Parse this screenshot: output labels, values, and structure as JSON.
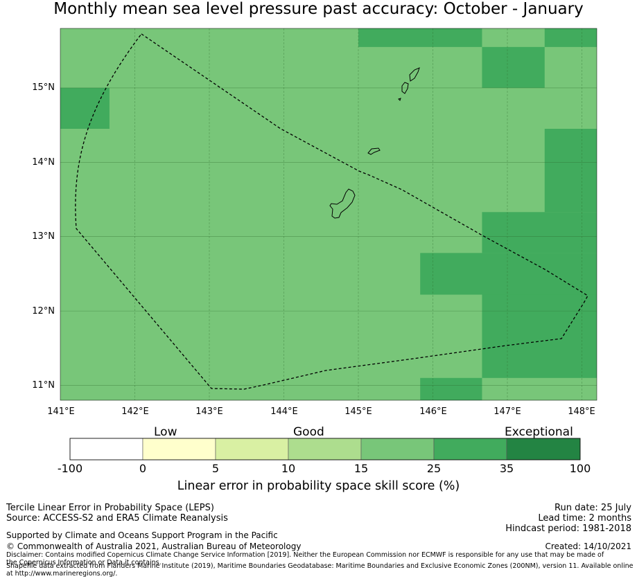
{
  "title": "Monthly mean sea level pressure past accuracy: October - January",
  "map": {
    "lon_range": [
      141.0,
      148.2
    ],
    "lat_range": [
      10.8,
      15.8
    ],
    "lat_labels": [
      "15°N",
      "14°N",
      "13°N",
      "12°N",
      "11°N"
    ],
    "lon_labels": [
      "141°E",
      "142°E",
      "143°E",
      "144°E",
      "145°E",
      "146°E",
      "147°E",
      "148°E"
    ],
    "background_category": "25",
    "colors": {
      "below_0": "#ffffff",
      "0_5": "#ffffcc",
      "5_10": "#d9f0a3",
      "10_15": "#addd8e",
      "15_25": "#78c679",
      "25_35": "#41ab5d",
      "35_100": "#238443"
    },
    "highlight_cells": [
      {
        "lon": [
          145.0,
          146.66
        ],
        "lat": [
          15.55,
          15.8
        ],
        "category": "25_35"
      },
      {
        "lon": [
          147.5,
          148.2
        ],
        "lat": [
          15.55,
          15.8
        ],
        "category": "25_35"
      },
      {
        "lon": [
          146.66,
          147.5
        ],
        "lat": [
          15.0,
          15.55
        ],
        "category": "25_35"
      },
      {
        "lon": [
          141.0,
          141.66
        ],
        "lat": [
          14.45,
          15.0
        ],
        "category": "25_35"
      },
      {
        "lon": [
          147.5,
          148.2
        ],
        "lat": [
          13.33,
          14.45
        ],
        "category": "25_35"
      },
      {
        "lon": [
          146.66,
          148.2
        ],
        "lat": [
          12.78,
          13.33
        ],
        "category": "25_35"
      },
      {
        "lon": [
          145.83,
          148.2
        ],
        "lat": [
          12.22,
          12.78
        ],
        "category": "25_35"
      },
      {
        "lon": [
          146.66,
          148.2
        ],
        "lat": [
          11.1,
          12.22
        ],
        "category": "25_35"
      },
      {
        "lon": [
          145.83,
          146.66
        ],
        "lat": [
          10.8,
          11.1
        ],
        "category": "25_35"
      }
    ]
  },
  "colorbar": {
    "regions": [
      "Low",
      "Good",
      "Exceptional"
    ],
    "ticks": [
      "-100",
      "0",
      "5",
      "10",
      "15",
      "25",
      "35",
      "100"
    ],
    "label": "Linear error in probability space skill score (%)"
  },
  "footer": {
    "method": "Tercile Linear Error in Probability Space (LEPS)",
    "source": "Source: ACCESS-S2 and ERA5 Climate Reanalysis",
    "run_date": "Run date: 25 July",
    "lead_time": "Lead time: 2 months",
    "hindcast": "Hindcast period: 1981-2018",
    "supported": "Supported by Climate and Oceans Support Program in the Pacific",
    "copyright": "© Commonwealth of Australia 2021, Australian Bureau of Meteorology",
    "created": "Created: 14/10/2021",
    "disclaimer": "Disclaimer: Contains modified Copernicus Climate Change Service Information [2019]. Neither the European Commission nor ECMWF is responsible for any use that may be made of the Copernicus Information or Data it contains.",
    "shapefile": "Shapefile data extracted from Flanders Marine Institute (2019), Maritime Boundaries Geodatabase: Maritime Boundaries and Exclusive Economic Zones (200NM), version 11. Available online at http://www.marineregions.org/."
  }
}
